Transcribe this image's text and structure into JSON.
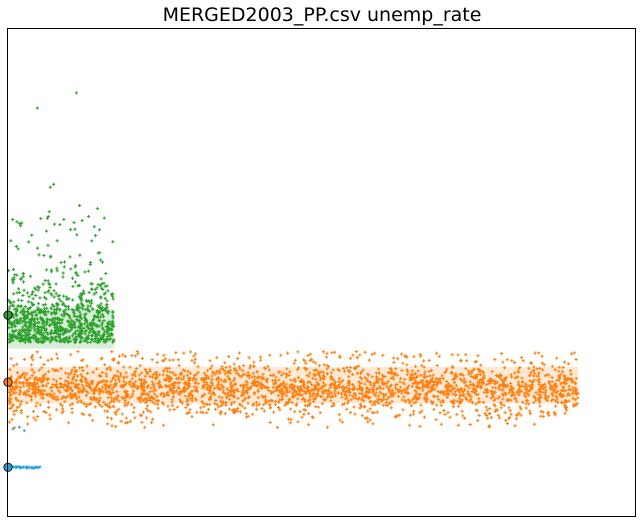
{
  "title": "MERGED2003_PP.csv  unemp_rate",
  "chart_data": {
    "type": "scatter",
    "title": "MERGED2003_PP.csv  unemp_rate",
    "xlabel": "",
    "ylabel": "",
    "x_range": [
      0,
      7700
    ],
    "y_range": [
      0,
      8
    ],
    "grid": false,
    "legend": "none",
    "axes_ticks_visible": false,
    "series": [
      {
        "color": "#2ca02c",
        "marker": "plus",
        "x_range": [
          0,
          1300
        ],
        "y_band": [
          2.7,
          3.85
        ],
        "sparse_outliers_up_to": 6.8,
        "start_marker_y": 3.3
      },
      {
        "color": "#ff7f0e",
        "marker": "plus",
        "x_range": [
          0,
          7000
        ],
        "y_band": [
          1.6,
          2.6
        ],
        "sparse_outliers": [
          1.45,
          2.7
        ],
        "start_marker_y": 2.2
      },
      {
        "color": "#1f9fd4",
        "marker": "plus",
        "x_range": [
          0,
          400
        ],
        "y_band": [
          0.78,
          0.82
        ],
        "sparse_outliers": [
          1.4,
          1.48
        ],
        "start_marker_y": 0.8
      }
    ]
  }
}
